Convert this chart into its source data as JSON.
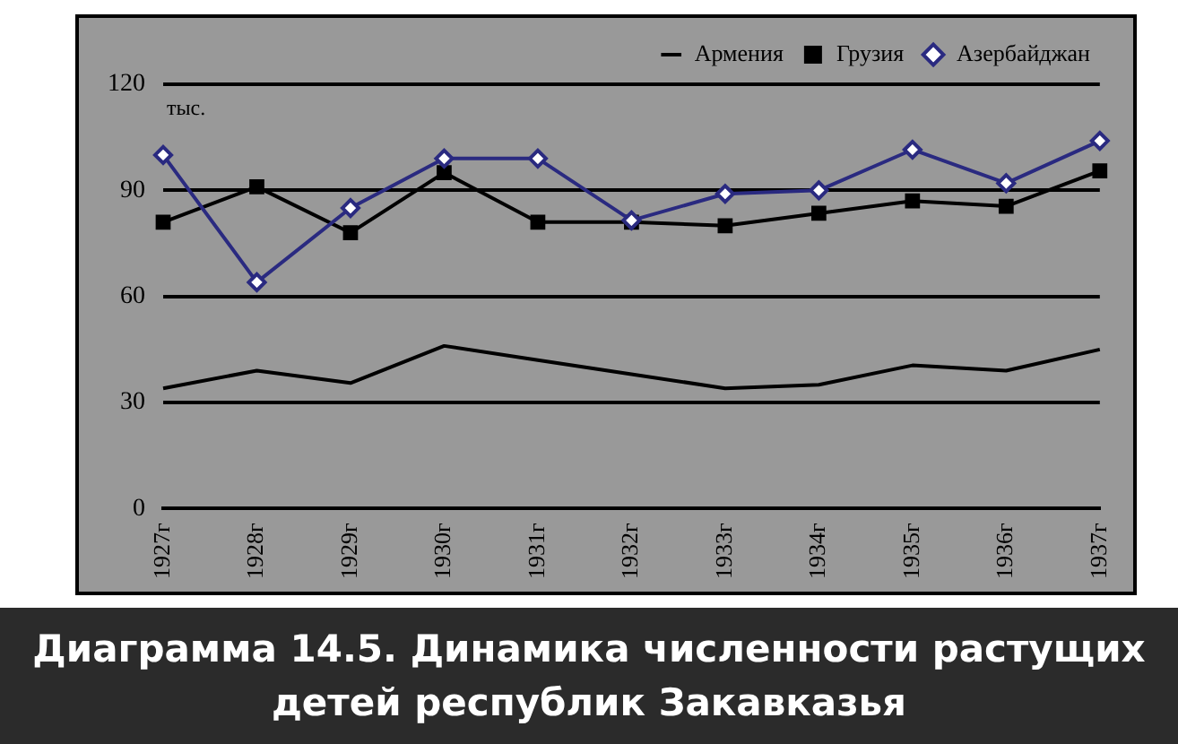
{
  "chart_data": {
    "type": "line",
    "title": "Диаграмма 14.5. Динамика численности растущих детей республик Закавказья",
    "categories": [
      "1927г",
      "1928г",
      "1929г",
      "1930г",
      "1931г",
      "1932г",
      "1933г",
      "1934г",
      "1935г",
      "1936г",
      "1937г"
    ],
    "series": [
      {
        "name": "Армения",
        "color": "#000000",
        "marker": "none",
        "values": [
          34,
          39,
          35.5,
          46,
          42,
          38,
          34,
          35,
          40.5,
          39,
          45
        ]
      },
      {
        "name": "Грузия",
        "color": "#000000",
        "marker": "square",
        "values": [
          81,
          91,
          78,
          95,
          81,
          81,
          80,
          83.5,
          87,
          85.5,
          95.5
        ]
      },
      {
        "name": "Азербайджан",
        "color": "#2a2a80",
        "marker": "diamond",
        "values": [
          100,
          64,
          85,
          99,
          99,
          81.5,
          89,
          90,
          101.5,
          92,
          104
        ]
      }
    ],
    "ylim": [
      0,
      120
    ],
    "yticks": [
      0,
      30,
      60,
      90,
      120
    ],
    "grid": "y",
    "legend": "top",
    "line_style": "solid",
    "annotations": [
      "тыс."
    ]
  }
}
